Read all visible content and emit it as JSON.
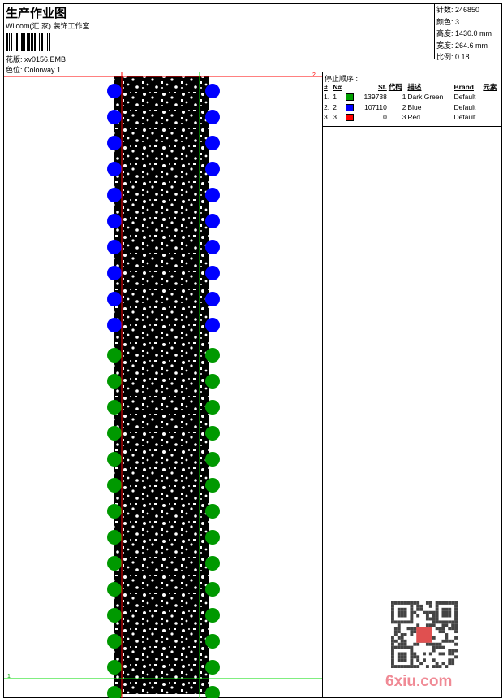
{
  "header": {
    "title": "生产作业图",
    "subtitle": "Wilcom(汇 家) 装饰工作室",
    "design_label": "花版:",
    "design_value": "xv0156.EMB",
    "colorway_label": "色位:",
    "colorway_value": "Colorway 1"
  },
  "info": [
    {
      "label": "针数:",
      "value": "246850"
    },
    {
      "label": "颜色:",
      "value": "3"
    },
    {
      "label": "高度:",
      "value": "1430.0 mm"
    },
    {
      "label": "宽度:",
      "value": "264.6 mm"
    },
    {
      "label": "比例:",
      "value": "0.18"
    }
  ],
  "stop_sequence": {
    "title": "停止顺序 :",
    "columns": [
      "#",
      "N#",
      "",
      "St.",
      "代码",
      "描述",
      "Brand",
      "元素"
    ],
    "rows": [
      {
        "idx": "1.",
        "n": "1",
        "color": "#00a000",
        "st": "139738",
        "code": "1",
        "desc": "Dark Green",
        "brand": "Default"
      },
      {
        "idx": "2.",
        "n": "2",
        "color": "#0000ff",
        "st": "107110",
        "code": "2",
        "desc": "Blue",
        "brand": "Default"
      },
      {
        "idx": "3.",
        "n": "3",
        "color": "#ff0000",
        "st": "0",
        "code": "3",
        "desc": "Red",
        "brand": "Default"
      }
    ]
  },
  "preview": {
    "start_marker": "1",
    "end_marker": "2"
  },
  "watermark": "6xiu.com",
  "colors": {
    "blue": "#0000ff",
    "green": "#009900",
    "red": "#ff0000",
    "guide_green": "#00dd00"
  }
}
